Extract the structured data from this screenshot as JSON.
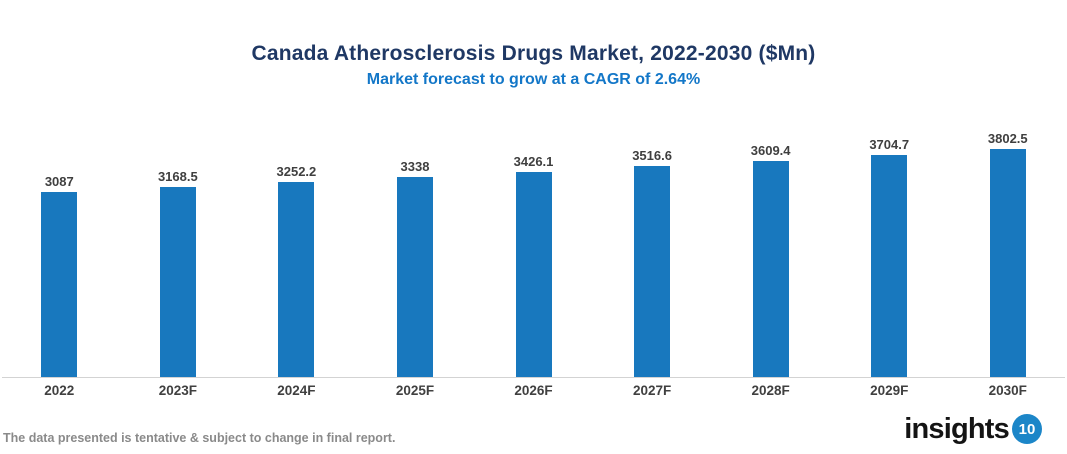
{
  "chart_data": {
    "type": "bar",
    "title": "Canada Atherosclerosis Drugs Market, 2022-2030 ($Mn)",
    "subtitle": "Market forecast to grow at a CAGR of 2.64%",
    "categories": [
      "2022",
      "2023F",
      "2024F",
      "2025F",
      "2026F",
      "2027F",
      "2028F",
      "2029F",
      "2030F"
    ],
    "values": [
      3087,
      3168.5,
      3252.2,
      3338,
      3426.1,
      3516.6,
      3609.4,
      3704.7,
      3802.5
    ],
    "value_labels": [
      "3087",
      "3168.5",
      "3252.2",
      "3338",
      "3426.1",
      "3516.6",
      "3609.4",
      "3704.7",
      "3802.5"
    ],
    "bar_color": "#1878BE",
    "ylim": [
      0,
      3802.5
    ],
    "grid": false,
    "legend": null,
    "value_labels_position": "above-bars",
    "baseline_axis": "x"
  },
  "footer": {
    "disclaimer": "The data presented is tentative & subject to change in final report."
  },
  "branding": {
    "logo_text": "insights",
    "logo_badge": "10",
    "badge_color": "#1C86C8"
  },
  "colors": {
    "title": "#1F3864",
    "subtitle": "#1377C8",
    "bar": "#1878BE",
    "value_label": "#3F3F3F",
    "tick_label": "#404040",
    "axis_line": "#D3D3D3",
    "disclaimer": "#8A8A8A"
  }
}
